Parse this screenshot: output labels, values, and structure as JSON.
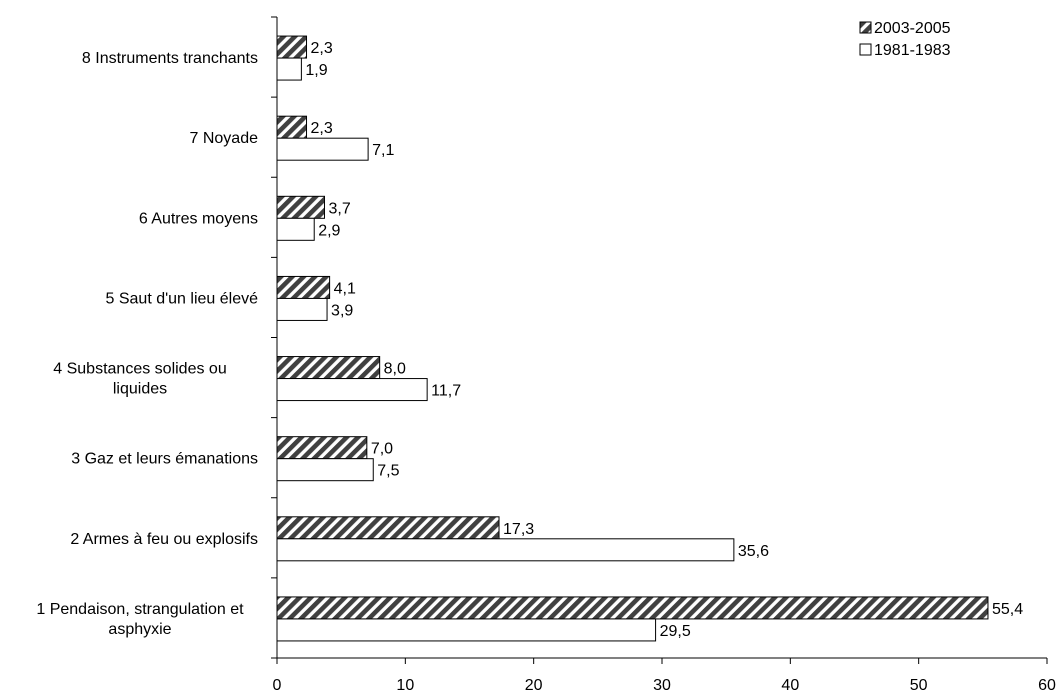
{
  "chart_data": {
    "type": "bar",
    "orientation": "horizontal",
    "categories": [
      "1 Pendaison, strangulation et asphyxie",
      "2 Armes à feu ou explosifs",
      "3 Gaz et leurs émanations",
      "4 Substances solides ou liquides",
      "5 Saut d'un lieu élevé",
      "6 Autres moyens",
      "7 Noyade",
      "8 Instruments tranchants"
    ],
    "category_lines": [
      [
        "1 Pendaison, strangulation et",
        "asphyxie"
      ],
      [
        "2 Armes à feu ou explosifs"
      ],
      [
        "3 Gaz et leurs émanations"
      ],
      [
        "4 Substances solides ou",
        "liquides"
      ],
      [
        "5 Saut d'un lieu élevé"
      ],
      [
        "6 Autres moyens"
      ],
      [
        "7 Noyade"
      ],
      [
        "8 Instruments tranchants"
      ]
    ],
    "series": [
      {
        "name": "2003-2005",
        "values": [
          55.4,
          17.3,
          7.0,
          8.0,
          4.1,
          3.7,
          2.3,
          2.3
        ],
        "labels": [
          "55,4",
          "17,3",
          "7,0",
          "8,0",
          "4,1",
          "3,7",
          "2,3",
          "2,3"
        ],
        "fill": "hatched dark grey",
        "color": "#404040"
      },
      {
        "name": "1981-1983",
        "values": [
          29.5,
          35.6,
          7.5,
          11.7,
          3.9,
          2.9,
          7.1,
          1.9
        ],
        "labels": [
          "29,5",
          "35,6",
          "7,5",
          "11,7",
          "3,9",
          "2,9",
          "7,1",
          "1,9"
        ],
        "fill": "white",
        "color": "#ffffff"
      }
    ],
    "xlim": [
      0,
      60
    ],
    "x_ticks": [
      0,
      10,
      20,
      30,
      40,
      50,
      60
    ],
    "title": "",
    "xlabel": "",
    "ylabel": "",
    "grid": false,
    "legend_position": "top-right"
  }
}
